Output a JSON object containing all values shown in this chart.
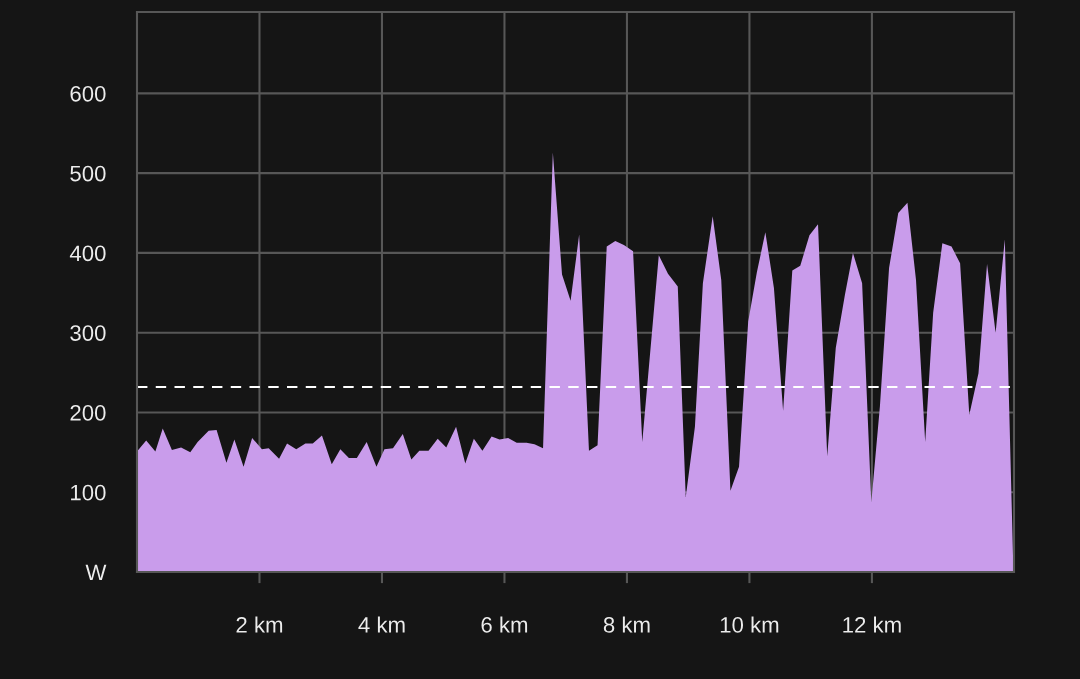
{
  "chart_data": {
    "type": "area",
    "x": [
      0,
      0.15,
      0.3,
      0.42,
      0.57,
      0.72,
      0.87,
      0.99,
      1.17,
      1.3,
      1.46,
      1.59,
      1.74,
      1.88,
      2.04,
      2.15,
      2.32,
      2.45,
      2.6,
      2.75,
      2.87,
      3.02,
      3.18,
      3.32,
      3.46,
      3.59,
      3.75,
      3.91,
      4.04,
      4.18,
      4.34,
      4.48,
      4.61,
      4.76,
      4.91,
      5.05,
      5.21,
      5.36,
      5.5,
      5.64,
      5.79,
      5.92,
      6.06,
      6.2,
      6.36,
      6.49,
      6.63,
      6.79,
      6.94,
      7.08,
      7.22,
      7.38,
      7.52,
      7.67,
      7.81,
      7.95,
      8.1,
      8.25,
      8.52,
      8.67,
      8.83,
      8.96,
      9.11,
      9.24,
      9.4,
      9.54,
      9.69,
      9.83,
      9.98,
      10.12,
      10.26,
      10.4,
      10.55,
      10.7,
      10.83,
      10.98,
      11.12,
      11.27,
      11.41,
      11.56,
      11.69,
      11.84,
      11.99,
      12.13,
      12.28,
      12.43,
      12.58,
      12.72,
      12.87,
      13.0,
      13.15,
      13.3,
      13.44,
      13.59,
      13.74,
      13.88,
      14.02,
      14.17,
      14.31
    ],
    "series": [
      {
        "color": "#c99ceb",
        "values": [
          151,
          165,
          151,
          180,
          153,
          156,
          150,
          163,
          177,
          178,
          137,
          166,
          132,
          168,
          154,
          155,
          142,
          161,
          154,
          161,
          161,
          171,
          135,
          154,
          143,
          143,
          163,
          132,
          154,
          155,
          173,
          141,
          152,
          152,
          167,
          156,
          182,
          136,
          167,
          152,
          170,
          166,
          168,
          162,
          162,
          160,
          155,
          526,
          373,
          340,
          423,
          152,
          159,
          408,
          415,
          410,
          402,
          163,
          397,
          374,
          358,
          94,
          182,
          362,
          446,
          366,
          102,
          132,
          314,
          375,
          426,
          356,
          202,
          378,
          384,
          422,
          436,
          145,
          281,
          348,
          400,
          362,
          87,
          207,
          381,
          450,
          463,
          366,
          163,
          325,
          412,
          408,
          387,
          197,
          249,
          386,
          300,
          417,
          2
        ]
      }
    ],
    "xlim": [
      0,
      14.32
    ],
    "ylim": [
      0,
      702
    ],
    "xticks": [
      {
        "value": 2,
        "label": "2 km"
      },
      {
        "value": 4,
        "label": "4 km"
      },
      {
        "value": 6,
        "label": "6 km"
      },
      {
        "value": 8,
        "label": "8 km"
      },
      {
        "value": 10,
        "label": "10 km"
      },
      {
        "value": 12,
        "label": "12 km"
      }
    ],
    "yticks": [
      {
        "value": 0,
        "label": "W"
      },
      100,
      200,
      300,
      400,
      500,
      600
    ],
    "grid": true,
    "ref_lines": [
      {
        "axis": "y",
        "value": 232,
        "color": "#ffffff",
        "line_style": "dashed"
      }
    ]
  }
}
